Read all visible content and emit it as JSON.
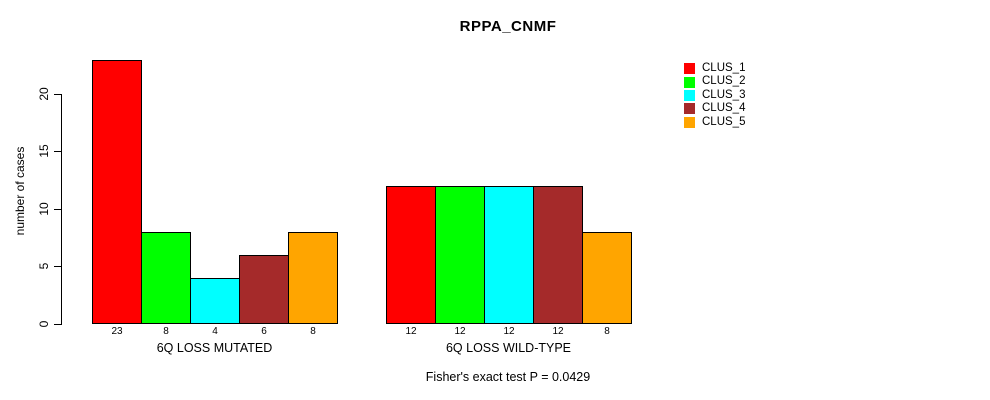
{
  "figure": {
    "background": "#ffffff"
  },
  "chart_data": {
    "type": "bar",
    "title": "RPPA_CNMF",
    "xlabel": "",
    "ylabel": "number of cases",
    "ylim": [
      0,
      23
    ],
    "yticks": [
      0,
      5,
      10,
      15,
      20
    ],
    "grid": false,
    "legend_position": "top-right",
    "categories": [
      "6Q LOSS MUTATED",
      "6Q LOSS WILD-TYPE"
    ],
    "series": [
      {
        "name": "CLUS_1",
        "color": "#FF0000",
        "values": [
          23,
          12
        ]
      },
      {
        "name": "CLUS_2",
        "color": "#00FF00",
        "values": [
          8,
          12
        ]
      },
      {
        "name": "CLUS_3",
        "color": "#00FFFF",
        "values": [
          4,
          12
        ]
      },
      {
        "name": "CLUS_4",
        "color": "#A52A2A",
        "values": [
          6,
          12
        ]
      },
      {
        "name": "CLUS_5",
        "color": "#FFA500",
        "values": [
          8,
          8
        ]
      }
    ],
    "bar_value_labels": [
      [
        "23",
        "8",
        "4",
        "6",
        "8"
      ],
      [
        "12",
        "12",
        "12",
        "12",
        "8"
      ]
    ],
    "annotation": "Fisher's exact test P = 0.0429"
  }
}
